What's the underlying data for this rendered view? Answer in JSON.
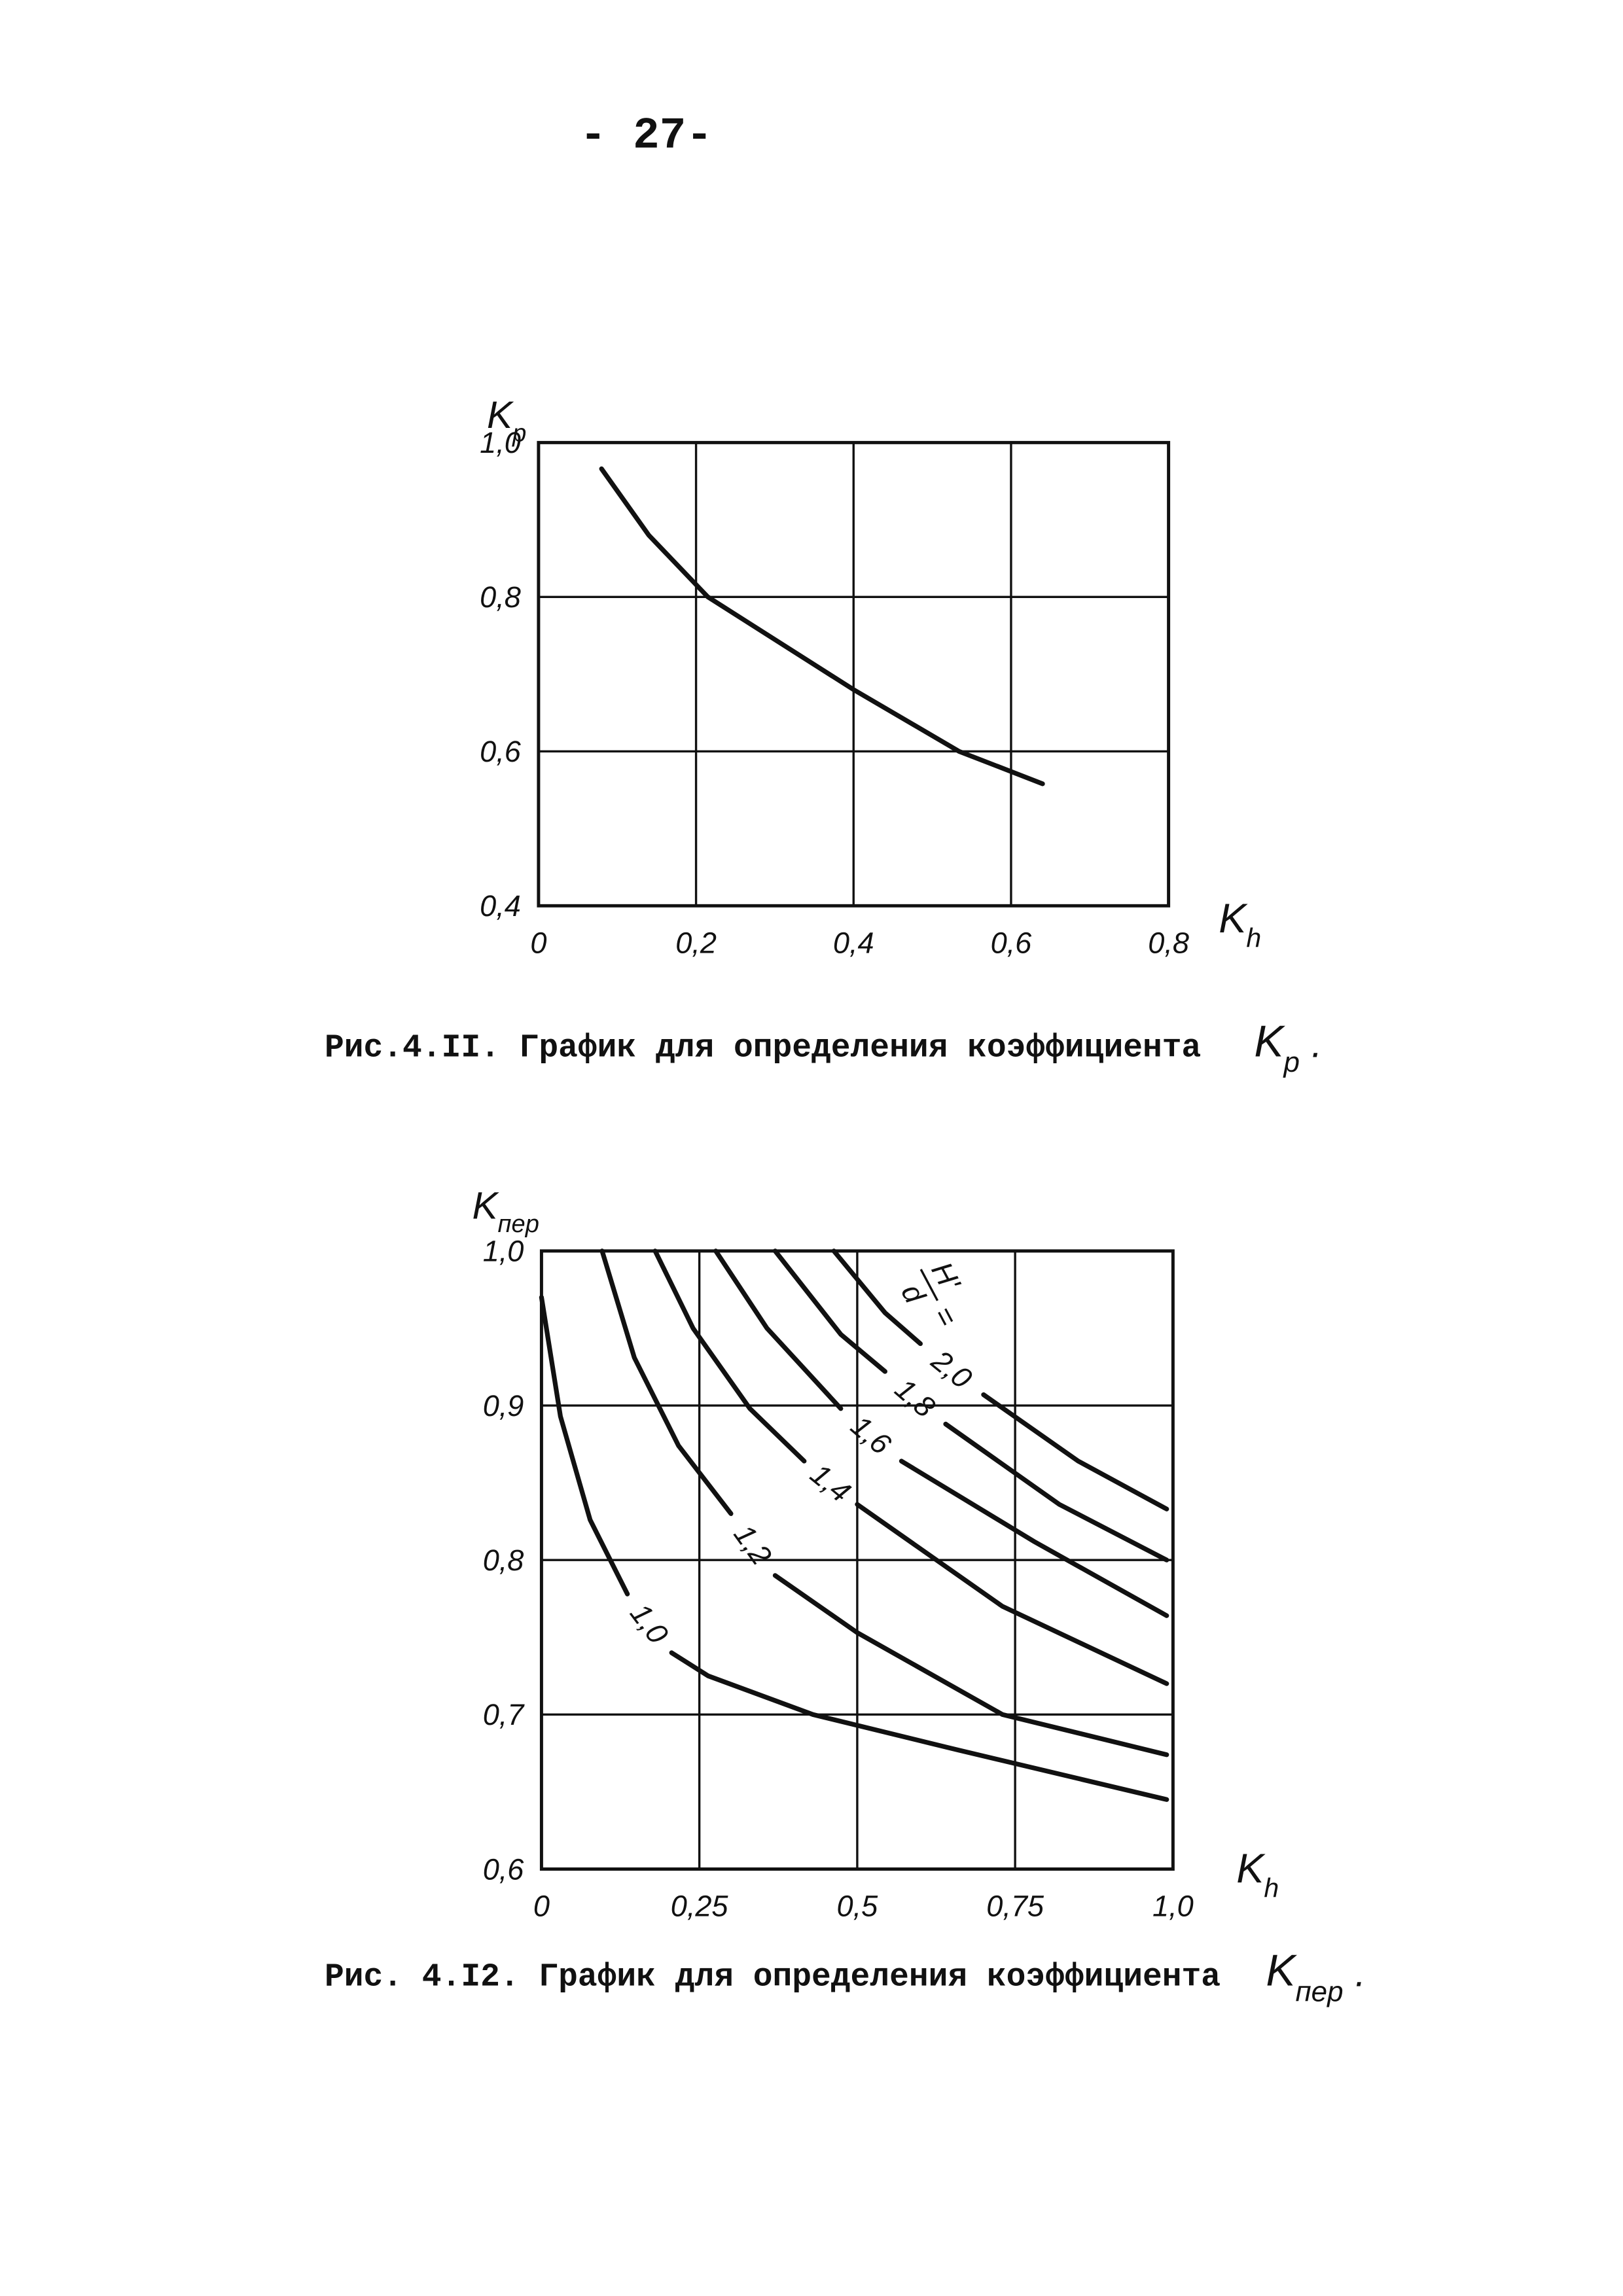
{
  "page_number": "- 27-",
  "chart_data": [
    {
      "type": "line",
      "xlabel": {
        "base": "K",
        "sub": "h"
      },
      "ylabel": {
        "base": "K",
        "sub": "p"
      },
      "caption": "Рис.4.II. График для определения коэффициента",
      "caption_symbol": {
        "base": "K",
        "sub": "p",
        "end": "."
      },
      "x": [
        0.08,
        0.14,
        0.215,
        0.4,
        0.534,
        0.64
      ],
      "values": [
        0.966,
        0.88,
        0.8,
        0.68,
        0.6,
        0.558
      ],
      "xlim": [
        0,
        0.8
      ],
      "xticks": [
        0,
        {
          "value": 0.2,
          "label": "0,2"
        },
        {
          "value": 0.4,
          "label": "0,4"
        },
        {
          "value": 0.6,
          "label": "0,6"
        },
        {
          "value": 0.8,
          "label": "0,8"
        }
      ],
      "ylim": [
        0.4,
        1.0
      ],
      "yticks": [
        {
          "value": 0.4,
          "label": "0,4"
        },
        {
          "value": 0.6,
          "label": "0,6"
        },
        {
          "value": 0.8,
          "label": "0,8"
        },
        {
          "value": 1.0,
          "label": "1,0"
        }
      ],
      "grid": true
    },
    {
      "type": "line",
      "xlabel": {
        "base": "K",
        "sub": "h"
      },
      "ylabel": {
        "base": "K",
        "sub": "пер"
      },
      "caption": "Рис. 4.I2. График для определения коэффициента",
      "caption_symbol": {
        "base": "K",
        "sub": "пер",
        "end": "."
      },
      "annotation": {
        "numerator": "H'",
        "denominator": "d",
        "sign": "="
      },
      "series": [
        {
          "name": "1,0",
          "x": [
            0,
            0.03,
            0.077,
            0.136,
            null,
            0.206,
            0.264,
            0.43,
            0.66,
            0.99
          ],
          "values": [
            0.97,
            0.893,
            0.826,
            0.778,
            null,
            0.74,
            0.725,
            0.7,
            0.677,
            0.645
          ]
        },
        {
          "name": "1,2",
          "x": [
            0.096,
            0.147,
            0.217,
            0.3,
            null,
            0.37,
            0.5,
            0.73,
            0.99
          ],
          "values": [
            1.0,
            0.931,
            0.874,
            0.83,
            null,
            0.79,
            0.753,
            0.7,
            0.674
          ]
        },
        {
          "name": "1,4",
          "x": [
            0.18,
            0.24,
            0.33,
            0.416,
            null,
            0.5,
            0.73,
            0.99
          ],
          "values": [
            1.0,
            0.95,
            0.898,
            0.864,
            null,
            0.836,
            0.77,
            0.72
          ]
        },
        {
          "name": "1,6",
          "x": [
            0.276,
            0.357,
            0.474,
            null,
            0.57,
            0.78,
            0.99
          ],
          "values": [
            1.0,
            0.95,
            0.898,
            null,
            0.864,
            0.812,
            0.764
          ]
        },
        {
          "name": "1,8",
          "x": [
            0.37,
            0.474,
            0.544,
            null,
            0.64,
            0.82,
            0.99
          ],
          "values": [
            1.0,
            0.946,
            0.922,
            null,
            0.888,
            0.836,
            0.8
          ]
        },
        {
          "name": "2,0",
          "x": [
            0.463,
            0.544,
            0.6,
            null,
            0.7,
            0.85,
            0.99
          ],
          "values": [
            1.0,
            0.96,
            0.94,
            null,
            0.907,
            0.864,
            0.833
          ]
        }
      ],
      "xlim": [
        0,
        1.0
      ],
      "xticks": [
        0,
        {
          "value": 0.25,
          "label": "0,25"
        },
        {
          "value": 0.5,
          "label": "0,5"
        },
        {
          "value": 0.75,
          "label": "0,75"
        },
        {
          "value": 1.0,
          "label": "1,0"
        }
      ],
      "ylim": [
        0.6,
        1.0
      ],
      "yticks": [
        {
          "value": 0.6,
          "label": "0,6"
        },
        {
          "value": 0.7,
          "label": "0,7"
        },
        {
          "value": 0.8,
          "label": "0,8"
        },
        {
          "value": 0.9,
          "label": "0,9"
        },
        {
          "value": 1.0,
          "label": "1,0"
        }
      ],
      "grid": true
    }
  ]
}
